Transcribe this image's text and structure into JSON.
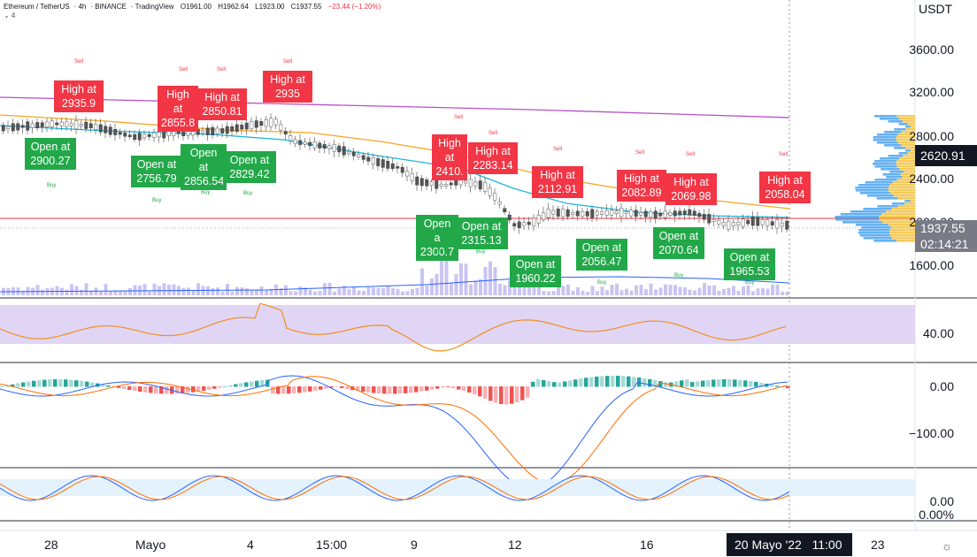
{
  "header": {
    "symbol": "Ethereum / TetherUS",
    "interval": "4h",
    "exchange": "BINANCE",
    "source": "TradingView",
    "open": "O1961.00",
    "high": "H1962.64",
    "low": "L1923.00",
    "close": "C1937.55",
    "change": "−23.44 (−1.20%)",
    "indicator_toggle": "⌄ 4"
  },
  "price_axis": {
    "unit": "USDT",
    "ticks": [
      "3600.00",
      "3200.00",
      "2800.00",
      "2400.00",
      "2000.00",
      "1600.00"
    ],
    "current_price": "1937.55",
    "countdown": "02:14:21",
    "level_tag": "2620.91"
  },
  "rsi_axis": {
    "ticks": [
      "40.00"
    ]
  },
  "macd_axis": {
    "ticks": [
      "0.00",
      "−100.00"
    ]
  },
  "stoch_axis": {
    "ticks": [
      "0.00",
      "0.00%"
    ]
  },
  "time_axis": {
    "labels": [
      "28",
      "Mayo",
      "4",
      "15:00",
      "9",
      "12",
      "16",
      "23"
    ],
    "selected": "20 Mayo '22   11:00"
  },
  "labels_high": [
    {
      "l1": "High at",
      "l2": "2935.9"
    },
    {
      "l1": "High at",
      "l2": "2855.8"
    },
    {
      "l1": "High at",
      "l2": "2850.81"
    },
    {
      "l1": "High at",
      "l2": "2935"
    },
    {
      "l1": "High at",
      "l2": "2410."
    },
    {
      "l1": "High at",
      "l2": "2283.14"
    },
    {
      "l1": "High at",
      "l2": "2112.91"
    },
    {
      "l1": "High at",
      "l2": "2082.89"
    },
    {
      "l1": "High at",
      "l2": "2069.98"
    },
    {
      "l1": "High at",
      "l2": "2058.04"
    }
  ],
  "labels_open": [
    {
      "l1": "Open at",
      "l2": "2900.27"
    },
    {
      "l1": "Open at",
      "l2": "2756.79"
    },
    {
      "l1": "Open at",
      "l2": "2856.54"
    },
    {
      "l1": "Open at",
      "l2": "2829.42"
    },
    {
      "l1": "Open a",
      "l2": "2300.7"
    },
    {
      "l1": "Open at",
      "l2": "2315.13"
    },
    {
      "l1": "Open at",
      "l2": "1960.22"
    },
    {
      "l1": "Open at",
      "l2": "2056.47"
    },
    {
      "l1": "Open at",
      "l2": "2070.64"
    },
    {
      "l1": "Open at",
      "l2": "1965.53"
    }
  ],
  "signal_sell": "Sell",
  "signal_buy": "Buy",
  "colors": {
    "up": "#26a69a",
    "down": "#ef5350",
    "label_red": "#f23645",
    "label_green": "#22a849",
    "rsi_band": "#e1d5f5",
    "rsi_line": "#f0901e",
    "macd_line": "#2962ff",
    "signal_line": "#ff6d00",
    "stoch_band": "#e3f2fd",
    "ema_long": "#b651c9",
    "ema_mid": "#f5a623",
    "ema_short": "#1fb5d6"
  }
}
